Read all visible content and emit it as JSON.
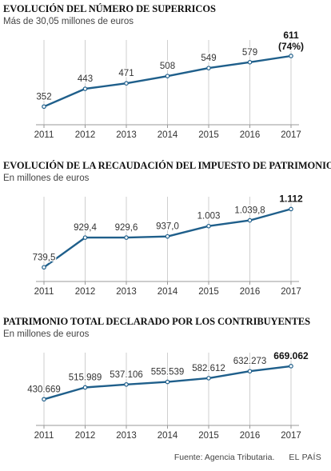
{
  "colors": {
    "line": "#1f5f8b",
    "grid": "#cfcfcf",
    "axis": "#999999",
    "text": "#333333"
  },
  "chart_data": [
    {
      "type": "line",
      "title": "EVOLUCIÓN DEL NÚMERO DE SUPERRICOS",
      "subtitle": "Más de 30,05 millones de euros",
      "x": [
        "2011",
        "2012",
        "2013",
        "2014",
        "2015",
        "2016",
        "2017"
      ],
      "values": [
        352,
        443,
        471,
        508,
        549,
        579,
        611
      ],
      "labels": [
        "352",
        "443",
        "471",
        "508",
        "549",
        "579",
        "611"
      ],
      "extra_label": "(74%)",
      "ylim": [
        300,
        660
      ],
      "grid": "vertical"
    },
    {
      "type": "line",
      "title": "EVOLUCIÓN DE LA RECAUDACIÓN DEL IMPUESTO DE PATRIMONIO",
      "subtitle": "En millones de euros",
      "x": [
        "2011",
        "2012",
        "2013",
        "2014",
        "2015",
        "2016",
        "2017"
      ],
      "values": [
        739.5,
        929.4,
        929.6,
        937.0,
        1003,
        1039.8,
        1112
      ],
      "labels": [
        "739,5",
        "929,4",
        "929,6",
        "937,0",
        "1.003",
        "1.039,8",
        "1.112"
      ],
      "extra_label": "",
      "ylim": [
        700,
        1150
      ],
      "grid": "vertical"
    },
    {
      "type": "line",
      "title": "PATRIMONIO TOTAL DECLARADO POR LOS CONTRIBUYENTES",
      "subtitle": "En millones de euros",
      "x": [
        "2011",
        "2012",
        "2013",
        "2014",
        "2015",
        "2016",
        "2017"
      ],
      "values": [
        430669,
        515989,
        537106,
        555539,
        582612,
        632273,
        669062
      ],
      "labels": [
        "430.669",
        "515.989",
        "537.106",
        "555.539",
        "582.612",
        "632.273",
        "669.062"
      ],
      "extra_label": "",
      "ylim": [
        300000,
        720000
      ],
      "grid": "vertical"
    }
  ],
  "footer": {
    "source": "Fuente: Agencia Tributaria.",
    "brand": "EL PAÍS"
  }
}
